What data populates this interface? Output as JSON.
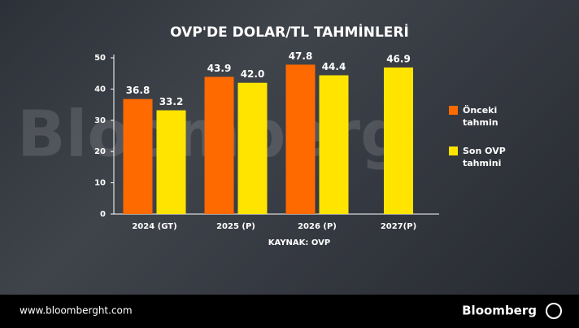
{
  "chart_data": {
    "type": "bar",
    "title": "OVP'DE DOLAR/TL TAHMİNLERİ",
    "watermark": "Bloomberg",
    "source": "KAYNAK: OVP",
    "categories": [
      "2024 (GT)",
      "2025 (P)",
      "2026 (P)",
      "2027(P)"
    ],
    "series": [
      {
        "name": "Önceki tahmin",
        "color": "#ff6a00",
        "values": [
          36.8,
          43.9,
          47.8,
          null
        ]
      },
      {
        "name": "Son OVP tahmini",
        "color": "#ffe400",
        "values": [
          33.2,
          42.0,
          44.4,
          46.9
        ],
        "value_labels": [
          "33.2",
          "42.0",
          "44.4",
          "46.9"
        ]
      }
    ],
    "ylim": [
      0,
      50
    ],
    "yticks": [
      0,
      10,
      20,
      30,
      40,
      50
    ],
    "legend": "right"
  },
  "footer": {
    "url": "www.bloomberght.com",
    "brand": "Bloomberg"
  }
}
